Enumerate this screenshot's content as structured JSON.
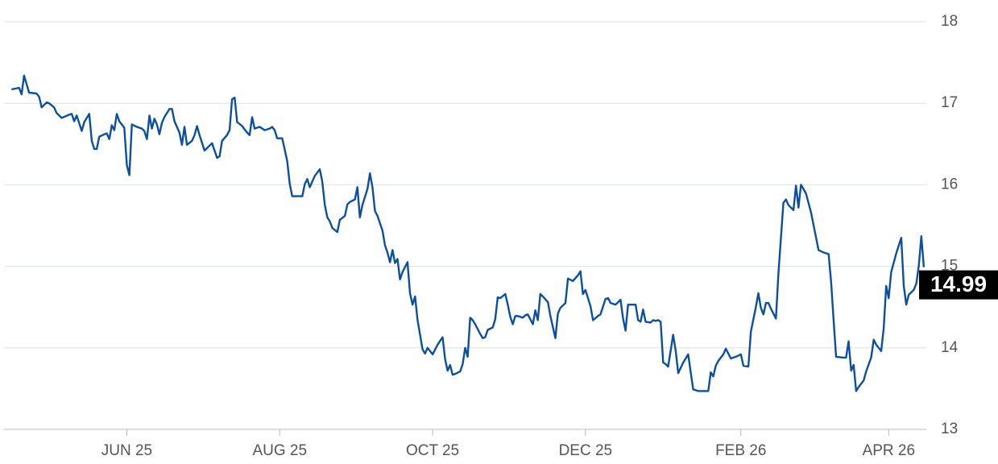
{
  "chart_data": {
    "type": "line",
    "xlim": [
      -49,
      319
    ],
    "xticks": [
      {
        "value": 0,
        "label": "JUN 25"
      },
      {
        "value": 61,
        "label": "AUG 25"
      },
      {
        "value": 122,
        "label": "OCT 25"
      },
      {
        "value": 183,
        "label": "DEC 25"
      },
      {
        "value": 245,
        "label": "FEB 26"
      },
      {
        "value": 304,
        "label": "APR 26"
      }
    ],
    "ylim": [
      13,
      18
    ],
    "yticks": [
      13,
      14,
      15,
      16,
      17,
      18
    ],
    "grid": true,
    "x": [
      -46,
      -43,
      -42,
      -41,
      -39,
      -36,
      -35,
      -34,
      -32,
      -31,
      -29,
      -28,
      -26,
      -23,
      -22,
      -21,
      -20,
      -18,
      -17,
      -15,
      -14,
      -13,
      -12,
      -11,
      -9,
      -8,
      -7,
      -6,
      -5,
      -4,
      -3,
      -1,
      0,
      1,
      2,
      4,
      6,
      7,
      8,
      9,
      10,
      11,
      12,
      13,
      14,
      15,
      17,
      18,
      19,
      21,
      22,
      23,
      24,
      26,
      27,
      28,
      29,
      31,
      34,
      35,
      36,
      37,
      38,
      40,
      41,
      42,
      43,
      44,
      46,
      48,
      49,
      50,
      51,
      53,
      55,
      57,
      58,
      59,
      60,
      62,
      63,
      64,
      65,
      66,
      68,
      70,
      71,
      72,
      73,
      75,
      77,
      78,
      79,
      80,
      81,
      82,
      84,
      85,
      87,
      88,
      89,
      91,
      92,
      93,
      94,
      96,
      97,
      98,
      99,
      100,
      102,
      103,
      104,
      105,
      106,
      107,
      108,
      109,
      110,
      112,
      113,
      114,
      115,
      116,
      117,
      118,
      119,
      120,
      122,
      124,
      126,
      127,
      128,
      129,
      130,
      131,
      133,
      134,
      135,
      136,
      137,
      138,
      139,
      141,
      142,
      143,
      144,
      146,
      147,
      148,
      149,
      151,
      152,
      153,
      154,
      155,
      156,
      158,
      159,
      160,
      162,
      163,
      164,
      165,
      166,
      168,
      169,
      171,
      172,
      173,
      175,
      176,
      178,
      180,
      181,
      182,
      183,
      185,
      186,
      188,
      189,
      191,
      192,
      193,
      195,
      197,
      198,
      199,
      200,
      202,
      203,
      204,
      205,
      206,
      207,
      209,
      210,
      211,
      212,
      213,
      214,
      215,
      216,
      218,
      219,
      220,
      222,
      224,
      225,
      226,
      228,
      229,
      231,
      232,
      233,
      234,
      235,
      236,
      238,
      239,
      241,
      243,
      245,
      246,
      248,
      249,
      251,
      252,
      253,
      254,
      255,
      256,
      257,
      259,
      260,
      261,
      262,
      263,
      264,
      266,
      267,
      268,
      269,
      270,
      271,
      273,
      276,
      278,
      280,
      281,
      282,
      283,
      286,
      287,
      288,
      289,
      290,
      291,
      292,
      294,
      295,
      297,
      298,
      299,
      301,
      302,
      303,
      304,
      305,
      307,
      309,
      310,
      311,
      312,
      314,
      315,
      316,
      317,
      318
    ],
    "series": [
      {
        "color": "#0b4fa0",
        "values": [
          17.17,
          17.19,
          17.11,
          17.34,
          17.13,
          17.12,
          17.08,
          16.95,
          17.01,
          17.0,
          16.95,
          16.88,
          16.82,
          16.86,
          16.87,
          16.78,
          16.85,
          16.66,
          16.77,
          16.87,
          16.54,
          16.44,
          16.44,
          16.59,
          16.62,
          16.63,
          16.56,
          16.73,
          16.67,
          16.87,
          16.78,
          16.7,
          16.24,
          16.12,
          16.74,
          16.71,
          16.69,
          16.66,
          16.56,
          16.85,
          16.69,
          16.81,
          16.74,
          16.62,
          16.76,
          16.83,
          16.93,
          16.93,
          16.78,
          16.64,
          16.49,
          16.71,
          16.49,
          16.54,
          16.61,
          16.72,
          16.61,
          16.42,
          16.51,
          16.42,
          16.33,
          16.35,
          16.54,
          16.61,
          16.67,
          17.05,
          17.07,
          16.77,
          16.72,
          16.64,
          16.61,
          16.83,
          16.69,
          16.71,
          16.67,
          16.69,
          16.71,
          16.67,
          16.57,
          16.57,
          16.43,
          16.29,
          16.01,
          15.86,
          15.86,
          15.86,
          16.01,
          16.07,
          15.97,
          16.11,
          16.19,
          16.04,
          15.75,
          15.6,
          15.55,
          15.47,
          15.42,
          15.57,
          15.62,
          15.76,
          15.79,
          15.82,
          15.97,
          15.6,
          15.75,
          15.95,
          16.14,
          15.97,
          15.68,
          15.62,
          15.44,
          15.26,
          15.17,
          15.05,
          15.2,
          15.04,
          15.09,
          14.84,
          14.93,
          15.05,
          14.67,
          14.53,
          14.63,
          14.34,
          14.16,
          13.98,
          13.93,
          14.0,
          13.92,
          14.04,
          14.13,
          13.86,
          13.72,
          13.79,
          13.67,
          13.68,
          13.71,
          13.8,
          14.0,
          13.89,
          14.37,
          14.34,
          14.29,
          14.17,
          14.12,
          14.13,
          14.22,
          14.25,
          14.35,
          14.62,
          14.61,
          14.66,
          14.53,
          14.38,
          14.29,
          14.39,
          14.39,
          14.37,
          14.4,
          14.41,
          14.29,
          14.46,
          14.34,
          14.66,
          14.63,
          14.56,
          14.39,
          14.12,
          14.42,
          14.49,
          14.55,
          14.85,
          14.82,
          14.89,
          14.94,
          14.66,
          14.71,
          14.51,
          14.34,
          14.39,
          14.41,
          14.6,
          14.61,
          14.55,
          14.53,
          14.59,
          14.36,
          14.21,
          14.53,
          14.53,
          14.53,
          14.34,
          14.32,
          14.47,
          14.32,
          14.31,
          14.34,
          14.33,
          14.34,
          14.32,
          13.82,
          13.8,
          13.77,
          14.16,
          13.96,
          13.69,
          13.82,
          13.92,
          13.7,
          13.49,
          13.47,
          13.47,
          13.47,
          13.47,
          13.7,
          13.65,
          13.78,
          13.84,
          13.92,
          13.99,
          13.87,
          13.89,
          13.92,
          13.78,
          13.77,
          14.2,
          14.5,
          14.67,
          14.49,
          14.41,
          14.55,
          14.55,
          14.48,
          14.36,
          14.91,
          15.35,
          15.78,
          15.82,
          15.75,
          15.69,
          15.99,
          15.72,
          16.0,
          15.95,
          15.89,
          15.66,
          15.2,
          15.17,
          15.15,
          14.81,
          14.34,
          13.89,
          13.88,
          13.88,
          14.08,
          13.72,
          13.79,
          13.47,
          13.52,
          13.6,
          13.71,
          13.88,
          14.1,
          14.04,
          13.96,
          14.24,
          14.76,
          14.61,
          14.93,
          15.16,
          15.35,
          14.76,
          14.53,
          14.65,
          14.71,
          14.79,
          15.01,
          15.37,
          14.99
        ]
      }
    ]
  }
}
